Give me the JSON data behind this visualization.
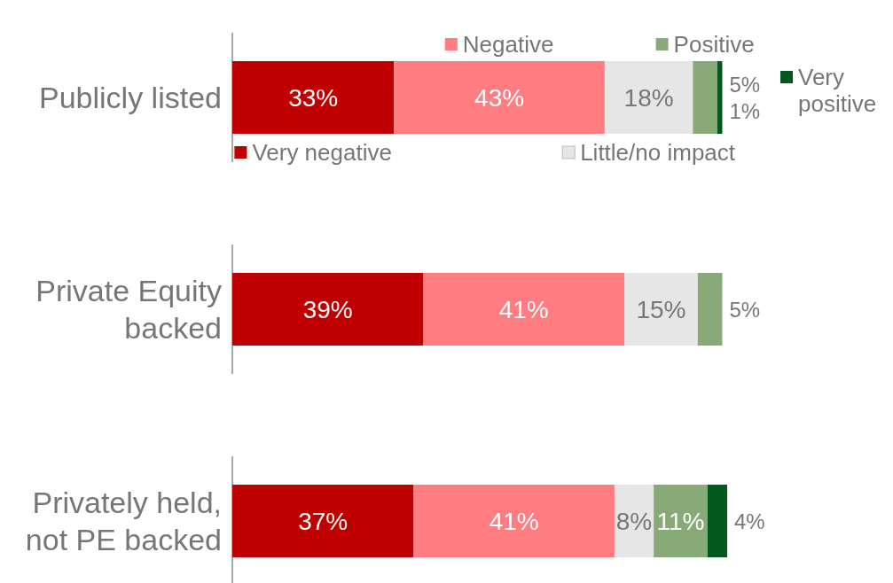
{
  "chart_data": {
    "type": "bar",
    "orientation": "horizontal",
    "stacked": true,
    "legend": "top",
    "categories": [
      "Publicly listed",
      "Private Equity backed",
      "Privately held, not PE backed"
    ],
    "series": [
      {
        "name": "Very negative",
        "color": "#c00000",
        "values": [
          33,
          39,
          37
        ],
        "value_labels": [
          "33%",
          "39%",
          "37%"
        ]
      },
      {
        "name": "Negative",
        "color": "#ff7c80",
        "values": [
          43,
          41,
          41
        ],
        "value_labels": [
          "43%",
          "41%",
          "41%"
        ]
      },
      {
        "name": "Little/no impact",
        "color": "#e6e6e6",
        "values": [
          18,
          15,
          8
        ],
        "value_labels": [
          "18%",
          "15%",
          "8%"
        ]
      },
      {
        "name": "Positive",
        "color": "#88aa78",
        "values": [
          5,
          5,
          11
        ],
        "value_labels": [
          "5%",
          "5%",
          "11%"
        ]
      },
      {
        "name": "Very positive",
        "color": "#005a1e",
        "values": [
          1,
          null,
          4
        ],
        "value_labels": [
          "1%",
          null,
          "4%"
        ]
      }
    ]
  }
}
